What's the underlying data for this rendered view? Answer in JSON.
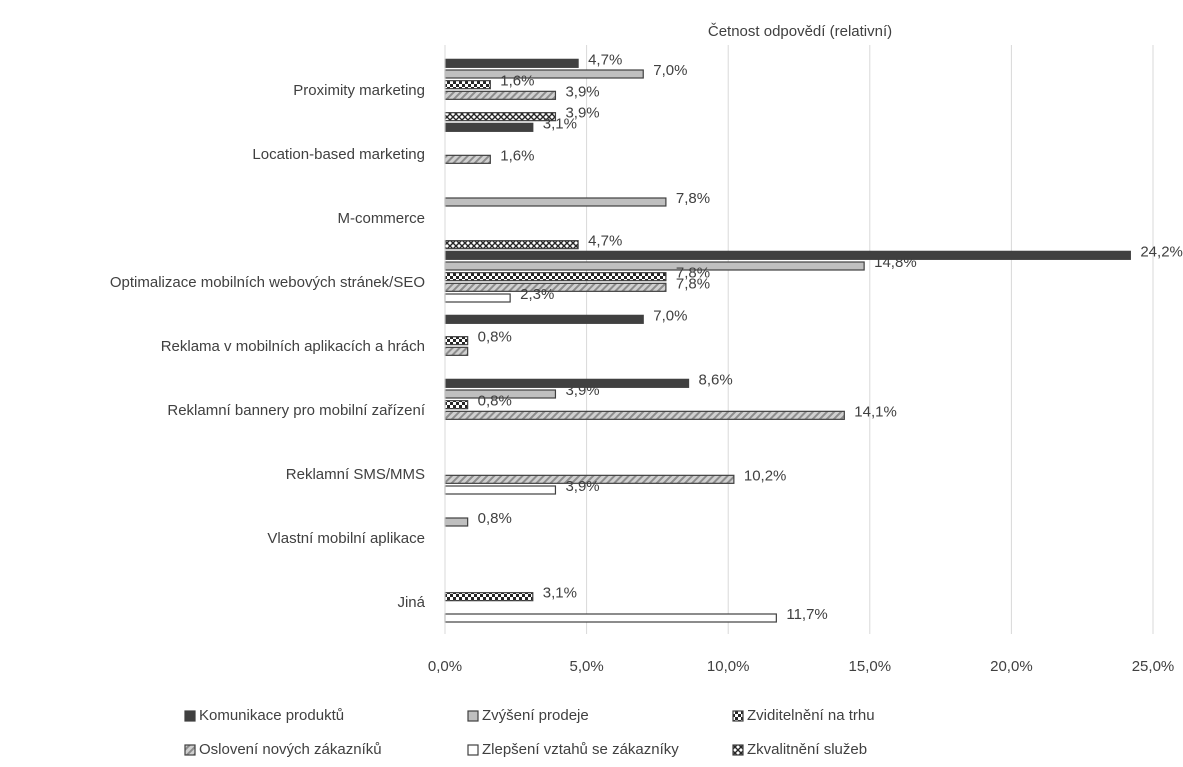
{
  "chart_data": {
    "type": "bar",
    "orientation": "horizontal",
    "title": "Četnost odpovědí (relativní)",
    "categories": [
      "Proximity marketing",
      "Location-based marketing",
      "M-commerce",
      "Optimalizace mobilních webových stránek/SEO",
      "Reklama v mobilních aplikacích a hrách",
      "Reklamní bannery pro mobilní zařízení",
      "Reklamní SMS/MMS",
      "Vlastní mobilní aplikace",
      "Jiná"
    ],
    "series": [
      {
        "name": "Komunikace produktů",
        "color": "#404040",
        "pattern": "solid",
        "values": [
          4.7,
          3.1,
          null,
          24.2,
          7.0,
          8.6,
          null,
          null,
          null
        ],
        "value_labels": [
          "4,7%",
          "3,1%",
          null,
          "24,2%",
          "7,0%",
          "8,6%",
          null,
          null,
          null
        ]
      },
      {
        "name": "Zvýšení prodeje",
        "color": "#bfbfbf",
        "pattern": "solid",
        "values": [
          7.0,
          null,
          7.8,
          14.8,
          null,
          3.9,
          null,
          0.8,
          null
        ],
        "value_labels": [
          "7,0%",
          null,
          "7,8%",
          "14,8%",
          null,
          "3,9%",
          null,
          "0,8%",
          null
        ]
      },
      {
        "name": "Zviditelnění na trhu",
        "color": "#262626",
        "pattern": "checker",
        "values": [
          1.6,
          null,
          null,
          7.8,
          0.8,
          0.8,
          null,
          null,
          3.1
        ],
        "value_labels": [
          "1,6%",
          null,
          null,
          "7,8%",
          "0,8%",
          "0,8%",
          null,
          null,
          "3,1%"
        ]
      },
      {
        "name": "Oslovení nových zákazníků",
        "color": "#a6a6a6",
        "pattern": "hatch",
        "values": [
          3.9,
          1.6,
          null,
          7.8,
          0.8,
          14.1,
          10.2,
          null,
          null
        ],
        "value_labels": [
          "3,9%",
          "1,6%",
          null,
          "7,8%",
          null,
          "14,1%",
          "10,2%",
          null,
          null
        ]
      },
      {
        "name": "Zlepšení vztahů se zákazníky",
        "color": "#ffffff",
        "pattern": "solid",
        "values": [
          null,
          null,
          null,
          2.3,
          null,
          null,
          3.9,
          null,
          11.7
        ],
        "value_labels": [
          null,
          null,
          null,
          "2,3%",
          null,
          null,
          "3,9%",
          null,
          "11,7%"
        ]
      },
      {
        "name": "Zkvalitnění služeb",
        "color": "#262626",
        "pattern": "cross",
        "values": [
          3.9,
          null,
          4.7,
          null,
          null,
          null,
          null,
          null,
          null
        ],
        "value_labels": [
          "3,9%",
          null,
          "4,7%",
          null,
          null,
          null,
          null,
          null,
          null
        ]
      }
    ],
    "xlim": [
      0,
      25
    ],
    "xticks": [
      {
        "value": 0,
        "label": "0,0%"
      },
      {
        "value": 5,
        "label": "5,0%"
      },
      {
        "value": 10,
        "label": "10,0%"
      },
      {
        "value": 15,
        "label": "15,0%"
      },
      {
        "value": 20,
        "label": "20,0%"
      },
      {
        "value": 25,
        "label": "25,0%"
      }
    ],
    "grid": true
  }
}
